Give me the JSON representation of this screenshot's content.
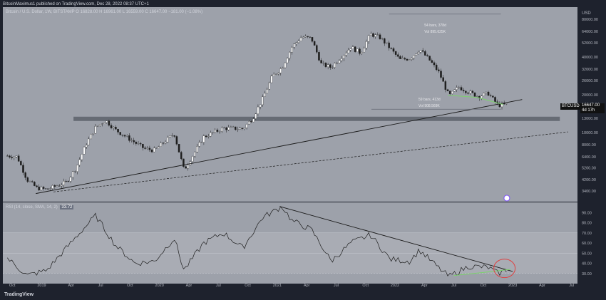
{
  "header": {
    "publisher": "BitcoinMaximus1 published on TradingView.com, Dec 28, 2022 08:37 UTC+1"
  },
  "symbol_line": {
    "title": "Bitcoin / U.S. Dollar, 1W, BITSTAMP",
    "ohlc": "O 16828.00  H 16961.00  L 16559.00  C 16647.00  −181.00 (−1.08%)"
  },
  "price_badge": {
    "ticker": "BTCUSD",
    "price": "16647.00",
    "countdown": "4d 17h"
  },
  "annotations": {
    "top_range": [
      "54 bars, 378d",
      "Vol 895.625K"
    ],
    "bottom_range": [
      "59 bars, 413d",
      "Vol 908.569K"
    ]
  },
  "rsi_label": {
    "text": "RSI (14, close, SMA, 14, 2)",
    "value": "33.72"
  },
  "branding": "TradingView",
  "colors": {
    "background": "#9da1aa",
    "frame": "#1e222d",
    "candle_up": "#ffffff",
    "candle_down": "#1e1e1e",
    "trendline": "#1a1a1a",
    "support_box": "#5d616b",
    "green_line": "#7bd36b",
    "circle": "#e04040"
  },
  "chart_data": [
    {
      "type": "candlestick",
      "title": "Bitcoin / U.S. Dollar, 1W, BITSTAMP",
      "y_scale": "log",
      "y_unit": "USD",
      "y_ticks": [
        3400,
        4200,
        5200,
        6400,
        8000,
        10000,
        13000,
        16000,
        20000,
        26000,
        32000,
        40000,
        52000,
        64000,
        80000
      ],
      "x_ticks": [
        "Oct",
        "2019",
        "Apr",
        "Jul",
        "Oct",
        "2020",
        "Apr",
        "Jul",
        "Oct",
        "2021",
        "Apr",
        "Jul",
        "Oct",
        "2022",
        "Apr",
        "Jul",
        "Oct",
        "2023",
        "Apr",
        "Jul"
      ],
      "close_path": [
        {
          "t": "2018-09",
          "v": 6500
        },
        {
          "t": "2018-10",
          "v": 6400
        },
        {
          "t": "2018-11",
          "v": 4200
        },
        {
          "t": "2018-12",
          "v": 3600
        },
        {
          "t": "2019-01",
          "v": 3500
        },
        {
          "t": "2019-03",
          "v": 4000
        },
        {
          "t": "2019-04",
          "v": 5200
        },
        {
          "t": "2019-05",
          "v": 8000
        },
        {
          "t": "2019-06",
          "v": 11000
        },
        {
          "t": "2019-07",
          "v": 12500
        },
        {
          "t": "2019-08",
          "v": 10500
        },
        {
          "t": "2019-10",
          "v": 8300
        },
        {
          "t": "2019-11",
          "v": 7400
        },
        {
          "t": "2019-12",
          "v": 7200
        },
        {
          "t": "2020-02",
          "v": 9800
        },
        {
          "t": "2020-03",
          "v": 5000
        },
        {
          "t": "2020-05",
          "v": 9200
        },
        {
          "t": "2020-07",
          "v": 10800
        },
        {
          "t": "2020-09",
          "v": 10700
        },
        {
          "t": "2020-10",
          "v": 13000
        },
        {
          "t": "2020-11",
          "v": 18500
        },
        {
          "t": "2020-12",
          "v": 28000
        },
        {
          "t": "2021-01",
          "v": 33000
        },
        {
          "t": "2021-02",
          "v": 48000
        },
        {
          "t": "2021-03",
          "v": 58000
        },
        {
          "t": "2021-04",
          "v": 56000
        },
        {
          "t": "2021-05",
          "v": 35000
        },
        {
          "t": "2021-06",
          "v": 33000
        },
        {
          "t": "2021-07",
          "v": 40000
        },
        {
          "t": "2021-08",
          "v": 48000
        },
        {
          "t": "2021-09",
          "v": 43000
        },
        {
          "t": "2021-10",
          "v": 61000
        },
        {
          "t": "2021-11",
          "v": 57000
        },
        {
          "t": "2021-12",
          "v": 47000
        },
        {
          "t": "2022-01",
          "v": 38000
        },
        {
          "t": "2022-02",
          "v": 39000
        },
        {
          "t": "2022-03",
          "v": 46000
        },
        {
          "t": "2022-04",
          "v": 38000
        },
        {
          "t": "2022-05",
          "v": 30000
        },
        {
          "t": "2022-06",
          "v": 19500
        },
        {
          "t": "2022-07",
          "v": 23000
        },
        {
          "t": "2022-08",
          "v": 21000
        },
        {
          "t": "2022-09",
          "v": 19400
        },
        {
          "t": "2022-10",
          "v": 20500
        },
        {
          "t": "2022-11",
          "v": 16500
        },
        {
          "t": "2022-12",
          "v": 16647
        }
      ]
    },
    {
      "type": "line",
      "title": "RSI (14, close, SMA, 14, 2)",
      "y_ticks": [
        30,
        40,
        50,
        60,
        70,
        80,
        90
      ],
      "last_value": 33.72,
      "path": [
        {
          "t": "2018-09",
          "v": 45
        },
        {
          "t": "2018-11",
          "v": 28
        },
        {
          "t": "2019-01",
          "v": 33
        },
        {
          "t": "2019-04",
          "v": 66
        },
        {
          "t": "2019-06",
          "v": 87
        },
        {
          "t": "2019-08",
          "v": 58
        },
        {
          "t": "2019-10",
          "v": 40
        },
        {
          "t": "2019-12",
          "v": 42
        },
        {
          "t": "2020-02",
          "v": 65
        },
        {
          "t": "2020-03",
          "v": 33
        },
        {
          "t": "2020-05",
          "v": 60
        },
        {
          "t": "2020-07",
          "v": 70
        },
        {
          "t": "2020-09",
          "v": 55
        },
        {
          "t": "2020-11",
          "v": 85
        },
        {
          "t": "2021-01",
          "v": 96
        },
        {
          "t": "2021-02",
          "v": 82
        },
        {
          "t": "2021-04",
          "v": 73
        },
        {
          "t": "2021-06",
          "v": 42
        },
        {
          "t": "2021-08",
          "v": 60
        },
        {
          "t": "2021-10",
          "v": 68
        },
        {
          "t": "2021-12",
          "v": 44
        },
        {
          "t": "2022-02",
          "v": 42
        },
        {
          "t": "2022-03",
          "v": 53
        },
        {
          "t": "2022-05",
          "v": 35
        },
        {
          "t": "2022-06",
          "v": 27
        },
        {
          "t": "2022-08",
          "v": 37
        },
        {
          "t": "2022-10",
          "v": 36
        },
        {
          "t": "2022-11",
          "v": 30
        },
        {
          "t": "2022-12",
          "v": 33.72
        }
      ]
    }
  ]
}
